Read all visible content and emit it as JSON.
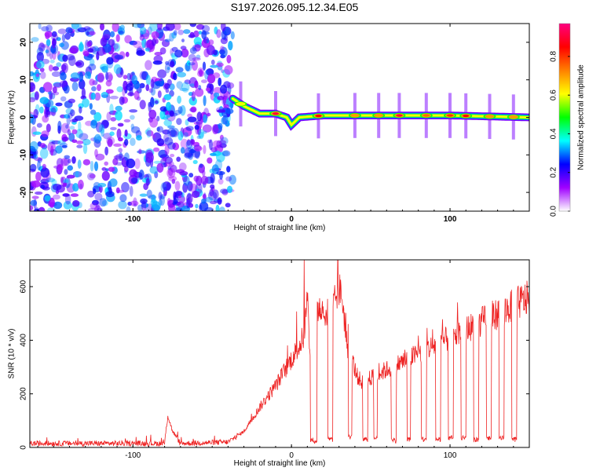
{
  "title": "S197.2026.095.12.34.E05",
  "chart_data": [
    {
      "type": "heatmap",
      "xlabel": "Height of straight line (km)",
      "ylabel": "Frequency (Hz)",
      "xlim": [
        -165,
        150
      ],
      "ylim": [
        -25,
        25
      ],
      "xticks": [
        -100,
        0,
        100
      ],
      "xtick_labels": [
        "-100",
        "0",
        "100"
      ],
      "yticks": [
        -20,
        -10,
        0,
        10,
        20
      ],
      "ytick_labels": [
        "-20",
        "-10",
        "0",
        "10",
        "20"
      ],
      "noise_region": {
        "x_from": -165,
        "x_to": -37,
        "amplitude_range": [
          0.1,
          0.35
        ]
      },
      "spectral_track": [
        {
          "x": -37,
          "freq": 5
        },
        {
          "x": -30,
          "freq": 3
        },
        {
          "x": -20,
          "freq": 1
        },
        {
          "x": -10,
          "freq": 1
        },
        {
          "x": -3,
          "freq": 0
        },
        {
          "x": 0,
          "freq": -2
        },
        {
          "x": 5,
          "freq": 0
        },
        {
          "x": 20,
          "freq": 0.5
        },
        {
          "x": 60,
          "freq": 0.5
        },
        {
          "x": 100,
          "freq": 0.5
        },
        {
          "x": 150,
          "freq": 0
        }
      ],
      "track_peaks": [
        {
          "x": -32,
          "freq": 3,
          "amplitude": 0.6
        },
        {
          "x": -10,
          "freq": 1,
          "amplitude": 0.9
        },
        {
          "x": 17,
          "freq": 0.5,
          "amplitude": 0.85
        },
        {
          "x": 40,
          "freq": 0.5,
          "amplitude": 0.7
        },
        {
          "x": 55,
          "freq": 0.5,
          "amplitude": 0.7
        },
        {
          "x": 68,
          "freq": 0.5,
          "amplitude": 0.9
        },
        {
          "x": 85,
          "freq": 0.5,
          "amplitude": 0.75
        },
        {
          "x": 100,
          "freq": 0.5,
          "amplitude": 0.8
        },
        {
          "x": 110,
          "freq": 0.5,
          "amplitude": 0.85
        },
        {
          "x": 125,
          "freq": 0.5,
          "amplitude": 0.7
        },
        {
          "x": 140,
          "freq": 0.5,
          "amplitude": 0.7
        }
      ],
      "colorbar": {
        "label": "Normalized spectral amplitude",
        "ticks": [
          0.0,
          0.2,
          0.4,
          0.6,
          0.8
        ],
        "tick_labels": [
          "0.0",
          "0.2",
          "0.4",
          "0.6",
          "0.8"
        ],
        "range": [
          0,
          0.97
        ],
        "colors": [
          "#ffffff",
          "#a000ff",
          "#0000ff",
          "#00ffff",
          "#00ff00",
          "#ffff00",
          "#ff8000",
          "#ff0000",
          "#ff0080"
        ]
      }
    },
    {
      "type": "line",
      "xlabel": "Height of straight line (km)",
      "ylabel": "SNR (10 * v/v)",
      "xlim": [
        -165,
        150
      ],
      "ylim": [
        0,
        700
      ],
      "xticks": [
        -100,
        0,
        100
      ],
      "xtick_labels": [
        "-100",
        "0",
        "100"
      ],
      "yticks": [
        0,
        200,
        400,
        600
      ],
      "ytick_labels": [
        "0",
        "200",
        "400",
        "600"
      ],
      "color": "#ee2222",
      "envelope": {
        "x": [
          -165,
          -80,
          -78,
          -75,
          -70,
          -40,
          -30,
          -20,
          -10,
          0,
          5,
          8,
          10,
          12,
          15,
          20,
          25,
          28,
          30,
          32,
          35,
          38,
          40,
          42,
          45,
          48,
          50,
          150
        ],
        "y": [
          15,
          15,
          120,
          60,
          15,
          20,
          60,
          150,
          230,
          330,
          380,
          420,
          560,
          300,
          520,
          510,
          490,
          560,
          590,
          560,
          380,
          340,
          290,
          260,
          240,
          250,
          260,
          560
        ]
      },
      "drops": [
        {
          "from": 12,
          "to": 16,
          "level": 25
        },
        {
          "from": 23,
          "to": 26,
          "level": 30
        },
        {
          "from": 36,
          "to": 38,
          "level": 40
        },
        {
          "from": 45,
          "to": 48,
          "level": 30
        },
        {
          "from": 52,
          "to": 54,
          "level": 35
        },
        {
          "from": 63,
          "to": 66,
          "level": 25
        },
        {
          "from": 73,
          "to": 75,
          "level": 30
        },
        {
          "from": 82,
          "to": 85,
          "level": 30
        },
        {
          "from": 91,
          "to": 94,
          "level": 30
        },
        {
          "from": 99,
          "to": 102,
          "level": 35
        },
        {
          "from": 107,
          "to": 110,
          "level": 35
        },
        {
          "from": 115,
          "to": 118,
          "level": 30
        },
        {
          "from": 123,
          "to": 126,
          "level": 35
        },
        {
          "from": 131,
          "to": 134,
          "level": 35
        },
        {
          "from": 139,
          "to": 142,
          "level": 30
        }
      ],
      "peak_value": 700,
      "peak_x": 8
    }
  ]
}
